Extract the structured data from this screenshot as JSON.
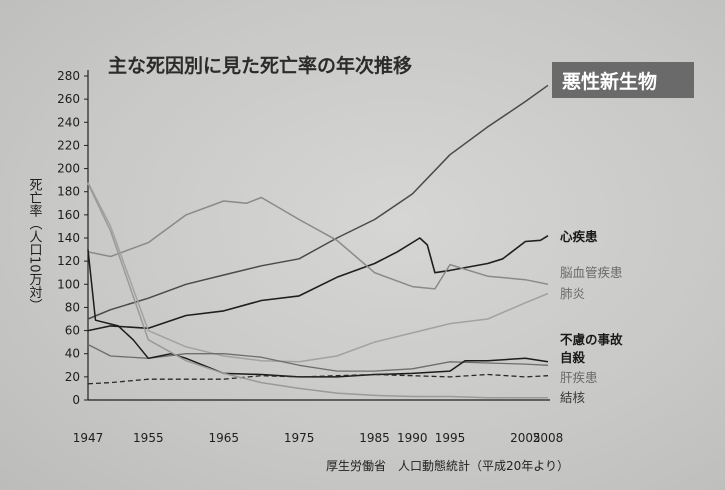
{
  "chart_data": {
    "type": "line",
    "title": "主な死因別に見た死亡率の年次推移",
    "ylabel": "死亡率（人口10万対）",
    "xlabel": "",
    "ylim": [
      0,
      280
    ],
    "yticks": [
      0,
      20,
      40,
      60,
      80,
      100,
      120,
      140,
      160,
      180,
      200,
      220,
      240,
      260,
      280
    ],
    "xlim": [
      1947,
      2008
    ],
    "xticks": [
      "1947",
      "1955",
      "1965",
      "1975",
      "1985",
      "1990",
      "1995",
      "2005",
      "2008"
    ],
    "grid": false,
    "source": "厚生労働省　人口動態統計（平成20年より）",
    "series": [
      {
        "name": "悪性新生物",
        "color": "#4a4a4a",
        "width": 1.5,
        "dash": "",
        "points": [
          [
            1947,
            70
          ],
          [
            1950,
            78
          ],
          [
            1955,
            88
          ],
          [
            1960,
            100
          ],
          [
            1965,
            108
          ],
          [
            1970,
            116
          ],
          [
            1975,
            122
          ],
          [
            1980,
            140
          ],
          [
            1985,
            156
          ],
          [
            1990,
            178
          ],
          [
            1995,
            212
          ],
          [
            2000,
            236
          ],
          [
            2005,
            258
          ],
          [
            2008,
            272
          ]
        ]
      },
      {
        "name": "心疾患",
        "color": "#1f1f1f",
        "width": 1.6,
        "dash": "",
        "points": [
          [
            1947,
            60
          ],
          [
            1950,
            64
          ],
          [
            1955,
            62
          ],
          [
            1960,
            73
          ],
          [
            1965,
            77
          ],
          [
            1970,
            86
          ],
          [
            1975,
            90
          ],
          [
            1980,
            106
          ],
          [
            1985,
            118
          ],
          [
            1988,
            128
          ],
          [
            1991,
            140
          ],
          [
            1992,
            134
          ],
          [
            1993,
            110
          ],
          [
            1995,
            112
          ],
          [
            2000,
            118
          ],
          [
            2002,
            122
          ],
          [
            2005,
            137
          ],
          [
            2007,
            138
          ],
          [
            2008,
            142
          ]
        ]
      },
      {
        "name": "脳血管疾患",
        "color": "#8a8a8a",
        "width": 1.5,
        "dash": "",
        "points": [
          [
            1947,
            128
          ],
          [
            1950,
            124
          ],
          [
            1955,
            136
          ],
          [
            1960,
            160
          ],
          [
            1965,
            172
          ],
          [
            1968,
            170
          ],
          [
            1970,
            175
          ],
          [
            1975,
            156
          ],
          [
            1980,
            138
          ],
          [
            1985,
            110
          ],
          [
            1990,
            98
          ],
          [
            1993,
            96
          ],
          [
            1995,
            117
          ],
          [
            2000,
            107
          ],
          [
            2005,
            104
          ],
          [
            2008,
            100
          ]
        ]
      },
      {
        "name": "肺炎",
        "color": "#a2a2a2",
        "width": 1.5,
        "dash": "",
        "points": [
          [
            1947,
            188
          ],
          [
            1950,
            150
          ],
          [
            1955,
            60
          ],
          [
            1960,
            46
          ],
          [
            1965,
            38
          ],
          [
            1970,
            34
          ],
          [
            1975,
            33
          ],
          [
            1980,
            38
          ],
          [
            1985,
            50
          ],
          [
            1990,
            58
          ],
          [
            1995,
            66
          ],
          [
            2000,
            70
          ],
          [
            2005,
            84
          ],
          [
            2008,
            92
          ]
        ]
      },
      {
        "name": "不慮の事故",
        "color": "#6e6e6e",
        "width": 1.3,
        "dash": "",
        "points": [
          [
            1947,
            48
          ],
          [
            1950,
            38
          ],
          [
            1955,
            36
          ],
          [
            1960,
            40
          ],
          [
            1965,
            40
          ],
          [
            1970,
            37
          ],
          [
            1975,
            30
          ],
          [
            1980,
            25
          ],
          [
            1985,
            25
          ],
          [
            1990,
            27
          ],
          [
            1995,
            33
          ],
          [
            2000,
            32
          ],
          [
            2005,
            31
          ],
          [
            2008,
            30
          ]
        ]
      },
      {
        "name": "自殺",
        "color": "#1c1c1c",
        "width": 1.5,
        "dash": "",
        "points": [
          [
            1947,
            130
          ],
          [
            1948,
            69
          ],
          [
            1951,
            64
          ],
          [
            1953,
            52
          ],
          [
            1955,
            36
          ],
          [
            1958,
            40
          ],
          [
            1960,
            36
          ],
          [
            1965,
            23
          ],
          [
            1970,
            22
          ],
          [
            1975,
            20
          ],
          [
            1980,
            20
          ],
          [
            1985,
            22
          ],
          [
            1990,
            23
          ],
          [
            1995,
            25
          ],
          [
            1997,
            34
          ],
          [
            2000,
            34
          ],
          [
            2005,
            36
          ],
          [
            2008,
            33
          ]
        ]
      },
      {
        "name": "肝疾患",
        "color": "#2a2a2a",
        "width": 1.3,
        "dash": "5,3",
        "points": [
          [
            1947,
            14
          ],
          [
            1950,
            15
          ],
          [
            1955,
            18
          ],
          [
            1960,
            18
          ],
          [
            1965,
            18
          ],
          [
            1970,
            21
          ],
          [
            1975,
            20
          ],
          [
            1980,
            21
          ],
          [
            1985,
            22
          ],
          [
            1990,
            21
          ],
          [
            1995,
            20
          ],
          [
            2000,
            22
          ],
          [
            2005,
            20
          ],
          [
            2008,
            21
          ]
        ]
      },
      {
        "name": "結核",
        "color": "#9a9a9a",
        "width": 1.5,
        "dash": "",
        "points": [
          [
            1947,
            187
          ],
          [
            1950,
            146
          ],
          [
            1955,
            52
          ],
          [
            1960,
            34
          ],
          [
            1965,
            23
          ],
          [
            1970,
            15
          ],
          [
            1975,
            10
          ],
          [
            1980,
            6
          ],
          [
            1985,
            4
          ],
          [
            1990,
            3
          ],
          [
            1995,
            3
          ],
          [
            2000,
            2
          ],
          [
            2005,
            2
          ],
          [
            2008,
            2
          ]
        ]
      }
    ],
    "labels": [
      {
        "key": "l1",
        "text": "悪性新生物",
        "style": "badge"
      },
      {
        "key": "l2",
        "text": "心疾患",
        "style": "strong"
      },
      {
        "key": "l3",
        "text": "脳血管疾患",
        "style": "light"
      },
      {
        "key": "l4",
        "text": "肺炎",
        "style": "light"
      },
      {
        "key": "l5",
        "text": "不慮の事故",
        "style": "strong"
      },
      {
        "key": "l6",
        "text": "自殺",
        "style": "strong"
      },
      {
        "key": "l7",
        "text": "肝疾患",
        "style": "light"
      },
      {
        "key": "l8",
        "text": "結核",
        "style": "mid"
      }
    ]
  }
}
